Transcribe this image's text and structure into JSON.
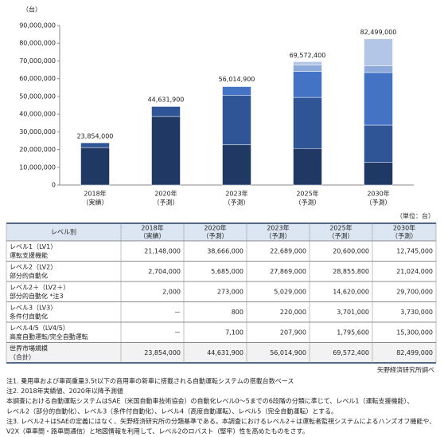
{
  "chart_data": {
    "type": "stacked_bar",
    "y_unit": "（台）",
    "categories": [
      "2018年",
      "2020年",
      "2023年",
      "2025年",
      "2030年"
    ],
    "category_sublabels": [
      "（実績）",
      "（予測）",
      "（予測）",
      "（予測）",
      "（予測）"
    ],
    "series": [
      {
        "color": "#203864",
        "values": [
          21148000,
          38666000,
          22689000,
          20600000,
          12745000
        ]
      },
      {
        "color": "#2f5597",
        "values": [
          2704000,
          5685000,
          27869000,
          28855800,
          21024000
        ]
      },
      {
        "color": "#4472c4",
        "values": [
          2000,
          273000,
          5029000,
          14620000,
          29700000
        ]
      },
      {
        "color": "#8eaadb",
        "values": [
          null,
          800,
          220000,
          3701000,
          3730000
        ]
      },
      {
        "color": "#b4c6e7",
        "values": [
          null,
          7100,
          207900,
          1795600,
          15300000
        ]
      }
    ],
    "total_labels": [
      "23,854,000",
      "44,631,900",
      "56,014,900",
      "69,572,400",
      "82,499,000"
    ],
    "ylim": [
      0,
      90000000
    ],
    "yticks": [
      0,
      {
        "value": 10000000,
        "label": "10,000,000"
      },
      {
        "value": 20000000,
        "label": "20,000,000"
      },
      {
        "value": 30000000,
        "label": "30,000,000"
      },
      {
        "value": 40000000,
        "label": "40,000,000"
      },
      {
        "value": 50000000,
        "label": "50,000,000"
      },
      {
        "value": 60000000,
        "label": "60,000,000"
      },
      {
        "value": 70000000,
        "label": "70,000,000"
      },
      {
        "value": 80000000,
        "label": "80,000,000"
      },
      {
        "value": 90000000,
        "label": "90,000,000"
      }
    ]
  },
  "table": {
    "unit": "（単位：台）",
    "header": [
      [
        "レベル別"
      ],
      [
        "2018年",
        "（実績）"
      ],
      [
        "2020年",
        "（予測）"
      ],
      [
        "2023年",
        "（予測）"
      ],
      [
        "2025年",
        "（予測）"
      ],
      [
        "2030年",
        "（予測）"
      ]
    ],
    "rows": [
      {
        "label": [
          "レベル1（LV1）",
          "運転支援機能"
        ],
        "values": [
          "21,148,000",
          "38,666,000",
          "22,689,000",
          "20,600,000",
          "12,745,000"
        ]
      },
      {
        "label": [
          "レベル2（LV2）",
          "部分的自動化"
        ],
        "values": [
          "2,704,000",
          "5,685,000",
          "27,869,000",
          "28,855,800",
          "21,024,000"
        ]
      },
      {
        "label": [
          "レベル2＋（LV2＋）",
          "部分的自動化 *注3"
        ],
        "values": [
          "2,000",
          "273,000",
          "5,029,000",
          "14,620,000",
          "29,700,000"
        ]
      },
      {
        "label": [
          "レベル3（LV3）",
          "条件付自動化"
        ],
        "values": [
          "－",
          "800",
          "220,000",
          "3,701,000",
          "3,730,000"
        ]
      },
      {
        "label": [
          "レベル4/5（LV4/5）",
          "高度自動運転/完全自動運転"
        ],
        "values": [
          "－",
          "7,100",
          "207,900",
          "1,795,600",
          "15,300,000"
        ]
      },
      {
        "label": [
          "世界市場規模",
          "（合計）"
        ],
        "values": [
          "23,854,000",
          "44,631,900",
          "56,014,900",
          "69,572,400",
          "82,499,000"
        ]
      }
    ],
    "source": "矢野経済研究所調べ"
  },
  "notes": [
    "注1. 乗用車および車両重量3.5t以下の商用車の新車に搭載される自動運転システムの搭載台数ベース",
    "注2. 2018年実績値、2020年以降予測値",
    "本調査における自動運転システムはSAE（米国自動車技術協会）の自動化レベル0～5までの6段階の分類に準じて、レベル1（運転支援機能）、",
    "レベル2（部分的自動化）、レベル3（条件付自動化）、レベル4（高度自動運転）、レベル5（完全自動運転）とする。",
    "注3. レベル2＋はSAEの定義にはなく、矢野経済研究所の分類基準である。本調査におけるレベル2＋は運転者監視システムによるハンズオフ機能や、",
    "V2X（車車間・路車間通信）と地図情報を利用して、レベル2のロバスト（堅牢）性を高めたものをさす。"
  ]
}
